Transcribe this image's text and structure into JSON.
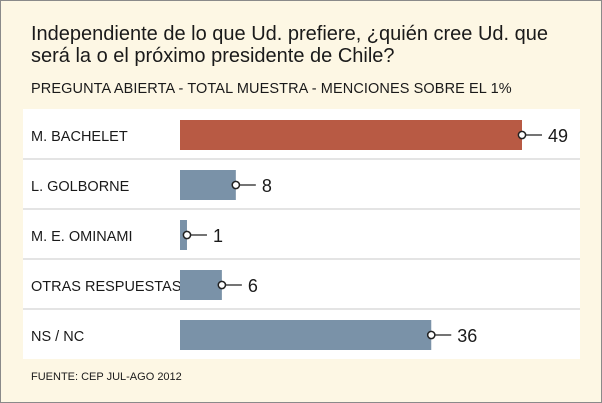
{
  "question": {
    "line1": "Independiente de lo que Ud. prefiere, ¿quién cree Ud. que",
    "line2": "será la o el próximo presidente de Chile?"
  },
  "subtitle": "PREGUNTA ABIERTA - TOTAL MUESTRA - MENCIONES SOBRE EL 1%",
  "source": "FUENTE: CEP JUL-AGO 2012",
  "colors": {
    "background": "#fdf7e4",
    "panel": "#ffffff",
    "highlight_bar": "#b85a44",
    "default_bar": "#7a92a8",
    "divider": "#c8c8c8"
  },
  "chart_data": {
    "type": "bar",
    "orientation": "horizontal",
    "categories": [
      "M. BACHELET",
      "L. GOLBORNE",
      "M. E. OMINAMI",
      "OTRAS RESPUESTAS",
      "NS / NC"
    ],
    "values": [
      49,
      8,
      1,
      6,
      36
    ],
    "highlight": [
      "M. BACHELET"
    ],
    "xlim": [
      0,
      49
    ],
    "grid": false,
    "legend": "none"
  }
}
